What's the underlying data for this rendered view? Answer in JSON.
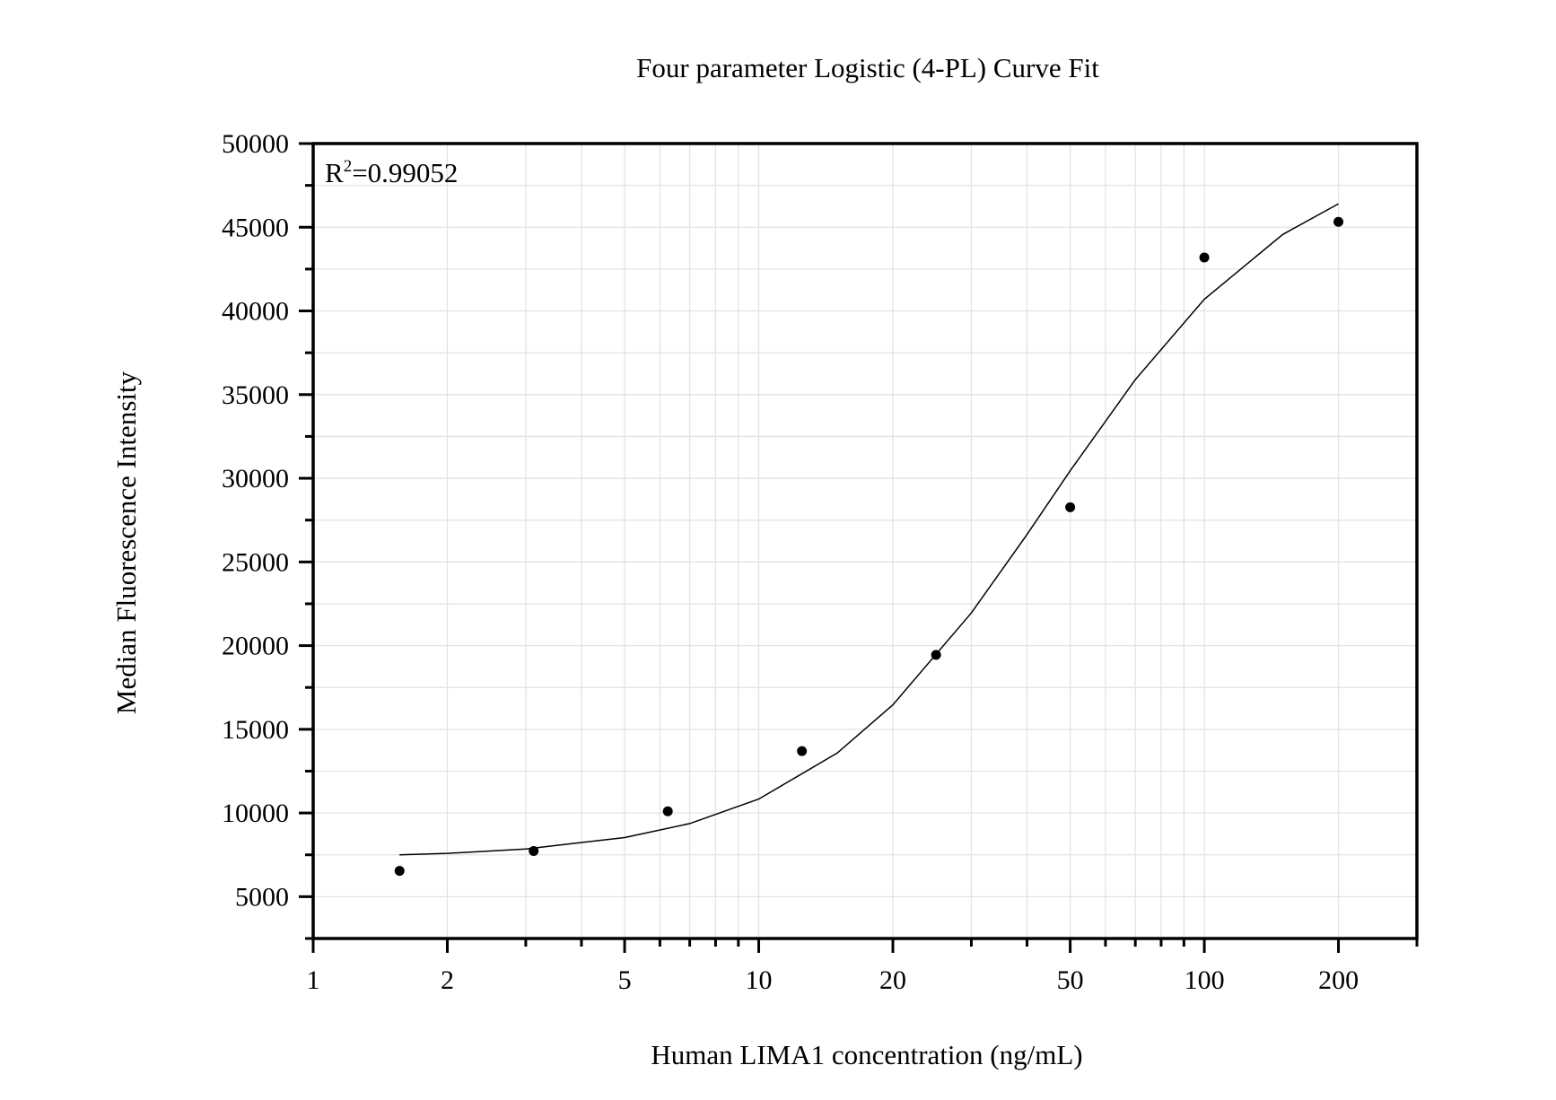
{
  "chart_data": {
    "type": "scatter",
    "title": "Four parameter Logistic (4-PL) Curve Fit",
    "xlabel": "Human LIMA1 concentration (ng/mL)",
    "ylabel": "Median Fluorescence Intensity",
    "annotation": {
      "base": "R",
      "sup": "2",
      "rest": "=0.99052"
    },
    "x_scale": "log",
    "xlim": [
      1,
      300
    ],
    "ylim": [
      2500,
      50000
    ],
    "grid": true,
    "x_ticks": [
      1,
      2,
      5,
      10,
      20,
      50,
      100,
      200
    ],
    "x_tick_labels": [
      "1",
      "2",
      "5",
      "10",
      "20",
      "50",
      "100",
      "200"
    ],
    "y_ticks": [
      5000,
      10000,
      15000,
      20000,
      25000,
      30000,
      35000,
      40000,
      45000,
      50000
    ],
    "y_tick_labels": [
      "5000",
      "10000",
      "15000",
      "20000",
      "25000",
      "30000",
      "35000",
      "40000",
      "45000",
      "50000"
    ],
    "points": {
      "x": [
        1.5625,
        3.125,
        6.25,
        12.5,
        25,
        50,
        100,
        200
      ],
      "y": [
        6540,
        7730,
        10100,
        13700,
        19450,
        28270,
        43190,
        45320
      ]
    },
    "fit_curve": {
      "x": [
        1.5625,
        2,
        3,
        5,
        7,
        10,
        15,
        20,
        30,
        40,
        50,
        70,
        100,
        150,
        200
      ],
      "y": [
        7500,
        7590,
        7853,
        8532,
        9368,
        10829,
        13579,
        16463,
        21958,
        26644,
        30449,
        35897,
        40700,
        44571,
        46400
      ]
    },
    "colors": {
      "points": "#000000",
      "curve": "#000000",
      "grid": "#e3e3e3",
      "axes": "#000000"
    }
  }
}
